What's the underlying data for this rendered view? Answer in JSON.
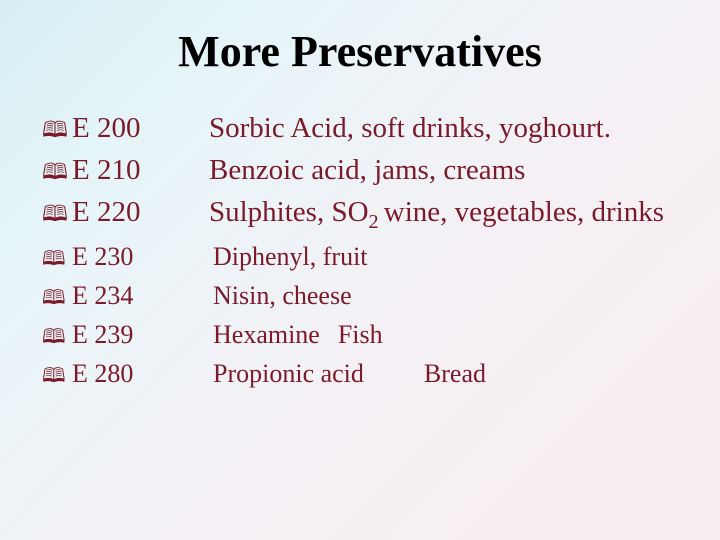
{
  "title": "More Preservatives",
  "items": [
    {
      "code": "E 200",
      "desc": "Sorbic Acid,  soft drinks, yoghourt.",
      "size": "large"
    },
    {
      "code": "E 210",
      "desc": "Benzoic acid, jams, creams",
      "size": "large"
    },
    {
      "code": "E 220",
      "desc": "Sulphites, SO",
      "sub": "2 ",
      "desc2": "wine, vegetables, drinks",
      "size": "large"
    },
    {
      "code": "E 230",
      "desc": "Diphenyl, fruit",
      "size": "small"
    },
    {
      "code": "E 234",
      "desc": "Nisin, cheese",
      "size": "small"
    },
    {
      "code": "E 239",
      "desc": "Hexamine",
      "gap": "sm",
      "desc2": "Fish",
      "size": "small"
    },
    {
      "code": "E 280",
      "desc": "Propionic acid",
      "gap": "md",
      "desc2": "Bread",
      "size": "small"
    }
  ],
  "colors": {
    "title": "#000000",
    "body_text": "#7a1a2a",
    "bg_top_left": "#d7f0f5",
    "bg_bottom_right": "#f6edf0"
  },
  "typography": {
    "title_fontsize": 44,
    "large_fontsize": 29,
    "small_fontsize": 26,
    "font_family": "Times New Roman"
  },
  "bullet_glyph": "🕮"
}
